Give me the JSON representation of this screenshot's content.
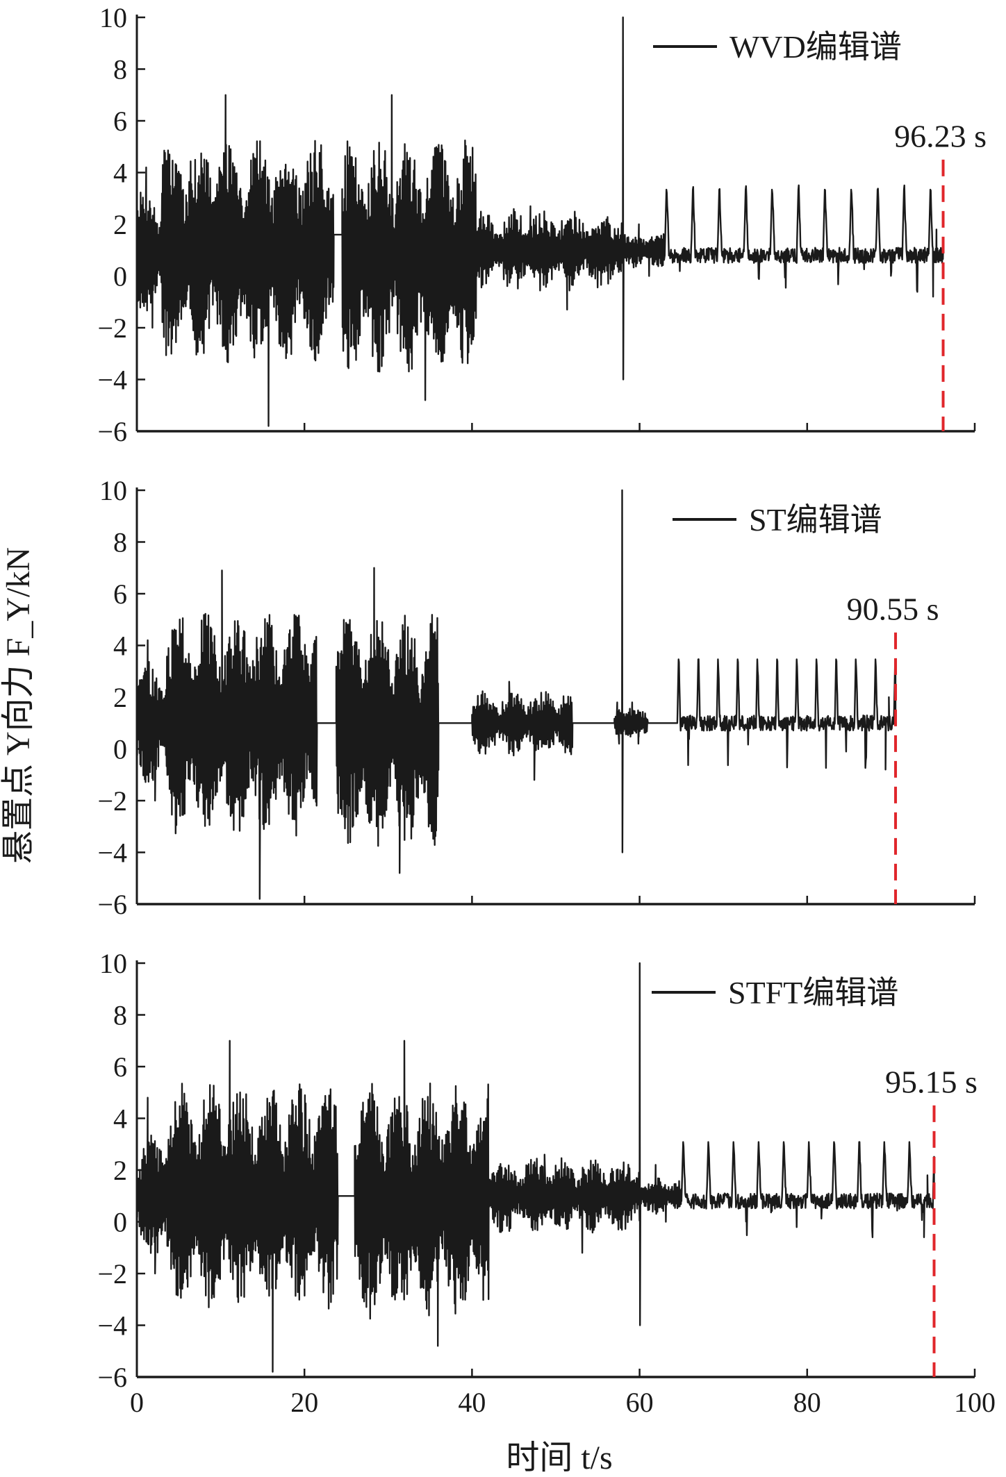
{
  "chart_data": {
    "type": "line",
    "ylabel": "悬置点 Y向力 F_Y/kN",
    "xlabel": "时间 t/s",
    "xlim": [
      0,
      100
    ],
    "ylim": [
      -6,
      10
    ],
    "x_ticks": [
      0,
      20,
      40,
      60,
      80,
      100
    ],
    "y_ticks": [
      -6,
      -4,
      -2,
      0,
      2,
      4,
      6,
      8,
      10
    ],
    "y_tick_labels": [
      "−6",
      "−4",
      "−2",
      "0",
      "2",
      "4",
      "6",
      "8",
      "10"
    ],
    "series_color": "#1a1a1a",
    "marker_color": "#e0262b",
    "panels": [
      {
        "legend": "WVD编辑谱",
        "end_time": 96.23,
        "marker_label": "96.23 s",
        "segments": [
          {
            "t0": 0.0,
            "t1": 3.0,
            "kind": "burst",
            "center": 1.0,
            "amp": 2.4,
            "max": 4.2,
            "min": -2.0
          },
          {
            "t0": 3.0,
            "t1": 23.5,
            "kind": "burst",
            "center": 1.0,
            "amp": 4.4,
            "max": 7.0,
            "min": -5.8
          },
          {
            "t0": 23.5,
            "t1": 24.5,
            "kind": "flat",
            "center": 1.6
          },
          {
            "t0": 24.5,
            "t1": 40.5,
            "kind": "burst",
            "center": 0.8,
            "amp": 4.6,
            "max": 7.0,
            "min": -4.8
          },
          {
            "t0": 40.5,
            "t1": 58.0,
            "kind": "medium",
            "center": 1.0,
            "amp": 1.6,
            "max": 2.7,
            "min": -1.3
          },
          {
            "t0": 58.0,
            "t1": 58.1,
            "kind": "spike",
            "max": 10.0,
            "min": -4.0
          },
          {
            "t0": 58.1,
            "t1": 63.0,
            "kind": "medium",
            "center": 1.0,
            "amp": 0.7,
            "max": 2.0,
            "min": 0.0
          },
          {
            "t0": 63.0,
            "t1": 96.23,
            "kind": "periodic",
            "center": 0.8,
            "peak": 3.6,
            "period": 3.15,
            "low": -0.8,
            "max": 3.6,
            "min": -0.8
          }
        ]
      },
      {
        "legend": "ST编辑谱",
        "end_time": 90.55,
        "marker_label": "90.55 s",
        "segments": [
          {
            "t0": 0.0,
            "t1": 3.5,
            "kind": "burst",
            "center": 1.0,
            "amp": 2.4,
            "max": 4.2,
            "min": -2.0
          },
          {
            "t0": 3.5,
            "t1": 21.5,
            "kind": "burst",
            "center": 1.0,
            "amp": 4.4,
            "max": 6.9,
            "min": -5.8
          },
          {
            "t0": 21.5,
            "t1": 23.8,
            "kind": "flat",
            "center": 1.0
          },
          {
            "t0": 23.8,
            "t1": 36.0,
            "kind": "burst",
            "center": 0.8,
            "amp": 4.6,
            "max": 7.0,
            "min": -4.8
          },
          {
            "t0": 36.0,
            "t1": 40.0,
            "kind": "flat",
            "center": 1.0
          },
          {
            "t0": 40.0,
            "t1": 52.0,
            "kind": "medium",
            "center": 1.0,
            "amp": 1.3,
            "max": 2.6,
            "min": -1.2
          },
          {
            "t0": 52.0,
            "t1": 57.0,
            "kind": "flat",
            "center": 1.0
          },
          {
            "t0": 57.0,
            "t1": 57.9,
            "kind": "medium",
            "center": 1.0,
            "amp": 0.6,
            "max": 1.8,
            "min": 0.2
          },
          {
            "t0": 57.9,
            "t1": 58.0,
            "kind": "spike",
            "max": 10.0,
            "min": -4.0
          },
          {
            "t0": 58.0,
            "t1": 61.0,
            "kind": "medium",
            "center": 1.0,
            "amp": 0.6,
            "max": 1.8,
            "min": 0.2
          },
          {
            "t0": 61.0,
            "t1": 64.5,
            "kind": "flat",
            "center": 1.0
          },
          {
            "t0": 64.5,
            "t1": 90.55,
            "kind": "periodic",
            "center": 1.0,
            "peak": 3.7,
            "period": 2.35,
            "low": -0.8,
            "max": 3.7,
            "min": -0.8
          }
        ]
      },
      {
        "legend": "STFT编辑谱",
        "end_time": 95.15,
        "marker_label": "95.15 s",
        "segments": [
          {
            "t0": 0.0,
            "t1": 3.5,
            "kind": "burst",
            "center": 1.0,
            "amp": 2.4,
            "max": 4.8,
            "min": -2.0
          },
          {
            "t0": 3.5,
            "t1": 24.0,
            "kind": "burst",
            "center": 1.0,
            "amp": 4.4,
            "max": 7.0,
            "min": -5.8
          },
          {
            "t0": 24.0,
            "t1": 26.0,
            "kind": "flat",
            "center": 1.0
          },
          {
            "t0": 26.0,
            "t1": 42.0,
            "kind": "burst",
            "center": 0.8,
            "amp": 4.6,
            "max": 7.0,
            "min": -4.8
          },
          {
            "t0": 42.0,
            "t1": 60.0,
            "kind": "medium",
            "center": 1.0,
            "amp": 1.5,
            "max": 2.6,
            "min": -1.2
          },
          {
            "t0": 60.0,
            "t1": 60.1,
            "kind": "spike",
            "max": 10.0,
            "min": -4.0
          },
          {
            "t0": 60.1,
            "t1": 65.0,
            "kind": "medium",
            "center": 1.0,
            "amp": 0.7,
            "max": 2.2,
            "min": 0.0
          },
          {
            "t0": 65.0,
            "t1": 95.15,
            "kind": "periodic",
            "center": 0.8,
            "peak": 3.2,
            "period": 3.0,
            "low": -0.6,
            "max": 3.2,
            "min": -0.6
          }
        ]
      }
    ]
  }
}
